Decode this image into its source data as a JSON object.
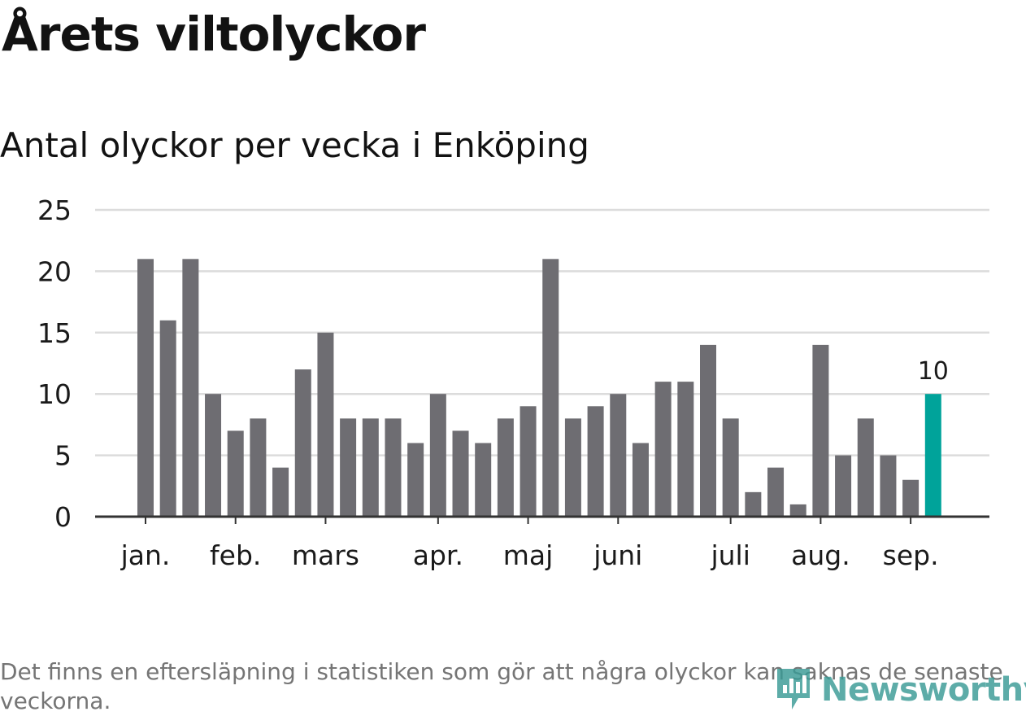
{
  "header": {
    "title": "Årets viltolyckor",
    "subtitle": "Antal olyckor per vecka i Enköping"
  },
  "footer": {
    "note": "Det finns en eftersläpning i statistiken som gör att några olyckor kan saknas de senaste veckorna.",
    "brand": "Newsworthy",
    "brand_icon": "newsworthy-logo-icon"
  },
  "colors": {
    "bar": "#6e6d72",
    "highlight": "#00a39a",
    "grid": "#dcdcdc",
    "axis": "#333333",
    "text": "#1a1a1a",
    "brand": "#3a9b96"
  },
  "chart_data": {
    "type": "bar",
    "title": "Årets viltolyckor",
    "subtitle": "Antal olyckor per vecka i Enköping",
    "xlabel": "",
    "ylabel": "",
    "ylim": [
      0,
      25
    ],
    "yticks": [
      0,
      5,
      10,
      15,
      20,
      25
    ],
    "grid": true,
    "legend": "none",
    "x_tick_labels": [
      {
        "label": "jan.",
        "at_index": 0
      },
      {
        "label": "feb.",
        "at_index": 4
      },
      {
        "label": "mars",
        "at_index": 8
      },
      {
        "label": "apr.",
        "at_index": 13
      },
      {
        "label": "maj",
        "at_index": 17
      },
      {
        "label": "juni",
        "at_index": 21
      },
      {
        "label": "juli",
        "at_index": 26
      },
      {
        "label": "aug.",
        "at_index": 30
      },
      {
        "label": "sep.",
        "at_index": 34
      }
    ],
    "values": [
      21,
      16,
      21,
      10,
      7,
      8,
      4,
      12,
      15,
      8,
      8,
      8,
      6,
      10,
      7,
      6,
      8,
      9,
      21,
      8,
      9,
      10,
      6,
      11,
      11,
      14,
      8,
      2,
      4,
      1,
      14,
      5,
      8,
      5,
      3,
      10
    ],
    "highlight_index": 35,
    "data_labels": [
      {
        "index": 35,
        "text": "10"
      }
    ]
  }
}
